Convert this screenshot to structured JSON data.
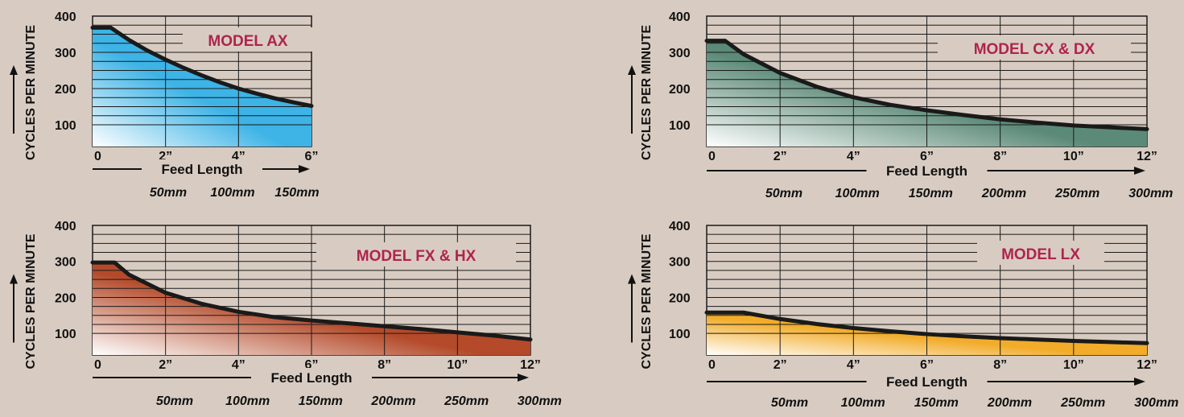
{
  "colors": {
    "background": "#d8ccc2",
    "curve": "#1a1a1a",
    "grid": "#1a1a1a",
    "model_label": "#b0234e"
  },
  "chart_data": [
    {
      "type": "area",
      "title": "MODEL AX",
      "ylabel": "CYCLES PER MINUTE",
      "xlabel": "Feed Length",
      "ylim": [
        40,
        400
      ],
      "xlim": [
        0,
        6
      ],
      "y_ticks": [
        "100",
        "200",
        "300",
        "400"
      ],
      "x_tick_labels": [
        "0",
        "2”",
        "4”",
        "6”"
      ],
      "mm_labels": [
        "50mm",
        "100mm",
        "150mm"
      ],
      "x": [
        0,
        0.5,
        1,
        1.5,
        2,
        2.5,
        3,
        3.5,
        4,
        4.5,
        5,
        5.5,
        6
      ],
      "y": [
        368,
        368,
        334,
        305,
        280,
        257,
        236,
        217,
        200,
        186,
        173,
        162,
        152
      ],
      "fill_top": "#3db3e6",
      "fill_bottom": "#ffffff",
      "grid": true
    },
    {
      "type": "area",
      "title": "MODEL CX & DX",
      "ylabel": "CYCLES PER MINUTE",
      "xlabel": "Feed Length",
      "ylim": [
        40,
        400
      ],
      "xlim": [
        0,
        12
      ],
      "y_ticks": [
        "100",
        "200",
        "300",
        "400"
      ],
      "x_tick_labels": [
        "0",
        "2”",
        "4”",
        "6”",
        "8”",
        "10”",
        "12”"
      ],
      "mm_labels": [
        "50mm",
        "100mm",
        "150mm",
        "200mm",
        "250mm",
        "300mm"
      ],
      "x": [
        0,
        0.5,
        1,
        2,
        3,
        4,
        5,
        6,
        7,
        8,
        9,
        10,
        11,
        12
      ],
      "y": [
        332,
        332,
        295,
        243,
        205,
        176,
        155,
        140,
        127,
        115,
        106,
        98,
        93,
        88
      ],
      "fill_top": "#5c8a78",
      "fill_bottom": "#ffffff",
      "grid": true
    },
    {
      "type": "area",
      "title": "MODEL FX & HX",
      "ylabel": "CYCLES PER MINUTE",
      "xlabel": "Feed Length",
      "ylim": [
        40,
        400
      ],
      "xlim": [
        0,
        12
      ],
      "y_ticks": [
        "100",
        "200",
        "300",
        "400"
      ],
      "x_tick_labels": [
        "0",
        "2”",
        "4”",
        "6”",
        "8”",
        "10”",
        "12”"
      ],
      "mm_labels": [
        "50mm",
        "100mm",
        "150mm",
        "200mm",
        "250mm",
        "300mm"
      ],
      "x": [
        0,
        0.6,
        1,
        2,
        3,
        4,
        5,
        6,
        7,
        8,
        9,
        10,
        11,
        12
      ],
      "y": [
        297,
        297,
        263,
        213,
        182,
        160,
        145,
        136,
        128,
        120,
        112,
        103,
        94,
        83
      ],
      "fill_top": "#b44a2a",
      "fill_bottom": "#ffffff",
      "grid": true
    },
    {
      "type": "area",
      "title": "MODEL LX",
      "ylabel": "CYCLES PER MINUTE",
      "xlabel": "Feed Length",
      "ylim": [
        40,
        400
      ],
      "xlim": [
        0,
        12
      ],
      "y_ticks": [
        "100",
        "200",
        "300",
        "400"
      ],
      "x_tick_labels": [
        "0",
        "2”",
        "4”",
        "6”",
        "8”",
        "10”",
        "12”"
      ],
      "mm_labels": [
        "50mm",
        "100mm",
        "150mm",
        "200mm",
        "250mm",
        "300mm"
      ],
      "x": [
        0,
        1,
        2,
        3,
        4,
        5,
        6,
        7,
        8,
        9,
        10,
        11,
        12
      ],
      "y": [
        158,
        158,
        140,
        126,
        115,
        106,
        98,
        92,
        87,
        83,
        79,
        76,
        73
      ],
      "fill_top": "#f2ac2a",
      "fill_bottom": "#ffffff",
      "grid": true
    }
  ]
}
